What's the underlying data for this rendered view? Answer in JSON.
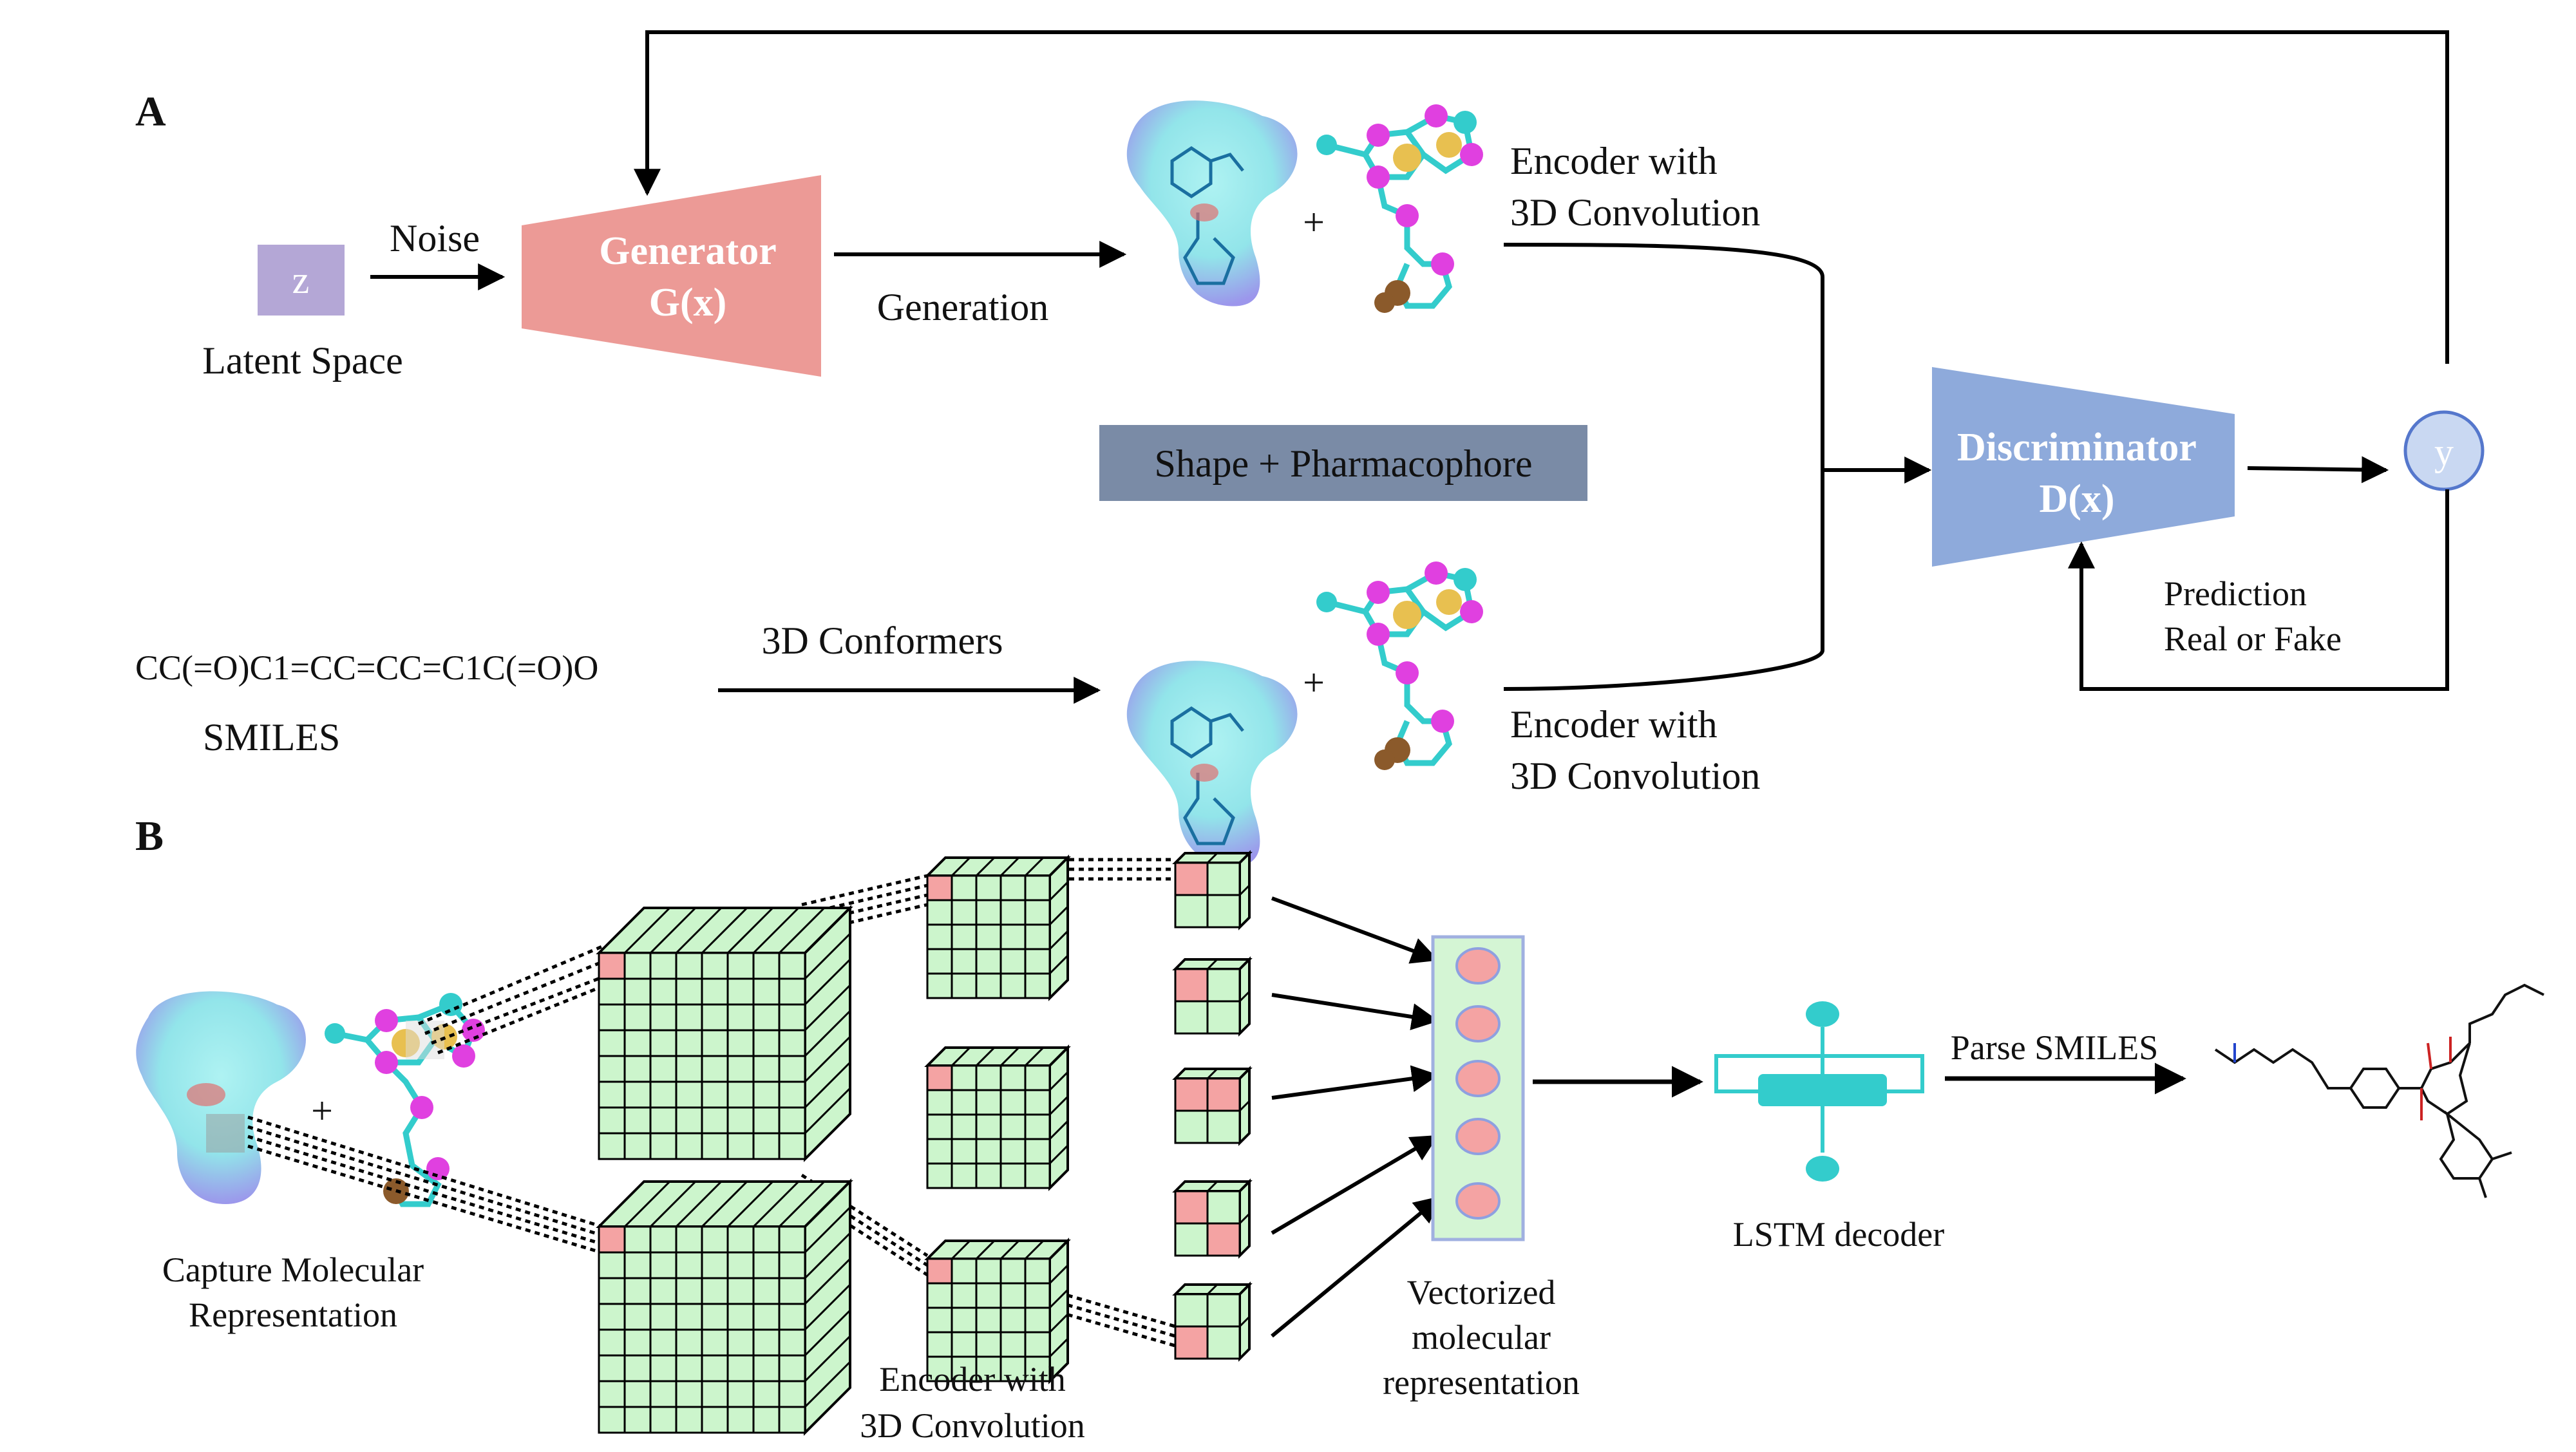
{
  "panel_a": {
    "label": "A",
    "z_box": "z",
    "latent_space": "Latent Space",
    "noise": "Noise",
    "generator": {
      "line1": "Generator",
      "line2": "G(x)"
    },
    "generation": "Generation",
    "plus": "+",
    "encoder_top": {
      "line1": "Encoder with",
      "line2": "3D Convolution"
    },
    "shape_pharmacophore": "Shape + Pharmacophore",
    "discriminator": {
      "line1": "Discriminator",
      "line2": "D(x)"
    },
    "y": "y",
    "prediction": {
      "line1": "Prediction",
      "line2": "Real or Fake"
    },
    "smiles_string": "CC(=O)C1=CC=CC=C1C(=O)O",
    "smiles_label": "SMILES",
    "conformers": "3D Conformers",
    "encoder_bottom": {
      "line1": "Encoder with",
      "line2": "3D Convolution"
    }
  },
  "panel_b": {
    "label": "B",
    "plus": "+",
    "capture": {
      "line1": "Capture Molecular",
      "line2": "Representation"
    },
    "encoder": {
      "line1": "Encoder with",
      "line2": "3D Convolution"
    },
    "vectorized": {
      "line1": "Vectorized",
      "line2": "molecular",
      "line3": "representation"
    },
    "lstm": "LSTM decoder",
    "parse": "Parse SMILES"
  },
  "colors": {
    "generator": "#ec9a96",
    "discriminator": "#8eaadb",
    "latent": "#b4a7d6",
    "shape_box": "#7a8ba6",
    "grid_cell": "#ccf5cc",
    "highlight_cell": "#f4a3a3",
    "lstm": "#33cccc",
    "carbon": "#33cccc",
    "pharmacophore": "#e040e0",
    "hydrophobic": "#e8c050",
    "ring_brown": "#8b5a2b"
  }
}
